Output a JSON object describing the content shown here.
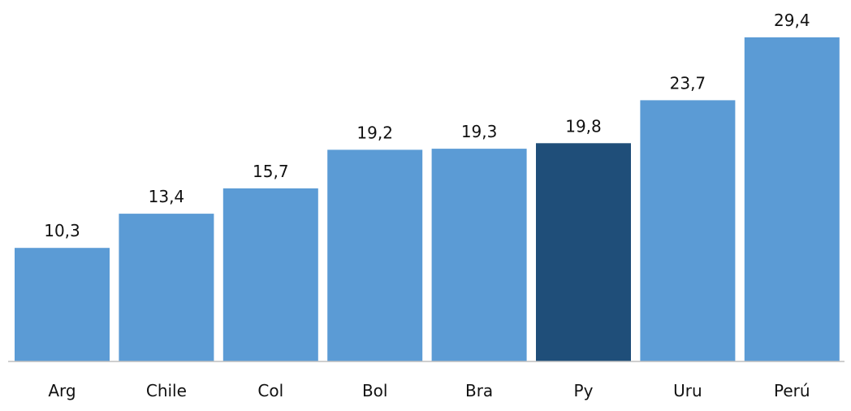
{
  "chart_data": {
    "type": "bar",
    "title": "",
    "xlabel": "",
    "ylabel": "",
    "categories": [
      "Arg",
      "Chile",
      "Col",
      "Bol",
      "Bra",
      "Py",
      "Uru",
      "Perú"
    ],
    "values": [
      10.3,
      13.4,
      15.7,
      19.2,
      19.3,
      19.8,
      23.7,
      29.4
    ],
    "value_labels": [
      "10,3",
      "13,4",
      "15,7",
      "19,2",
      "19,3",
      "19,8",
      "23,7",
      "29,4"
    ],
    "ylim": [
      0,
      29.4
    ],
    "grid": false,
    "legend": "none",
    "highlight_category": "Py",
    "colors": {
      "bar": "#5b9bd5",
      "highlight": "#1f4e79",
      "axis": "#bfbfbf",
      "text": "#111111"
    }
  }
}
